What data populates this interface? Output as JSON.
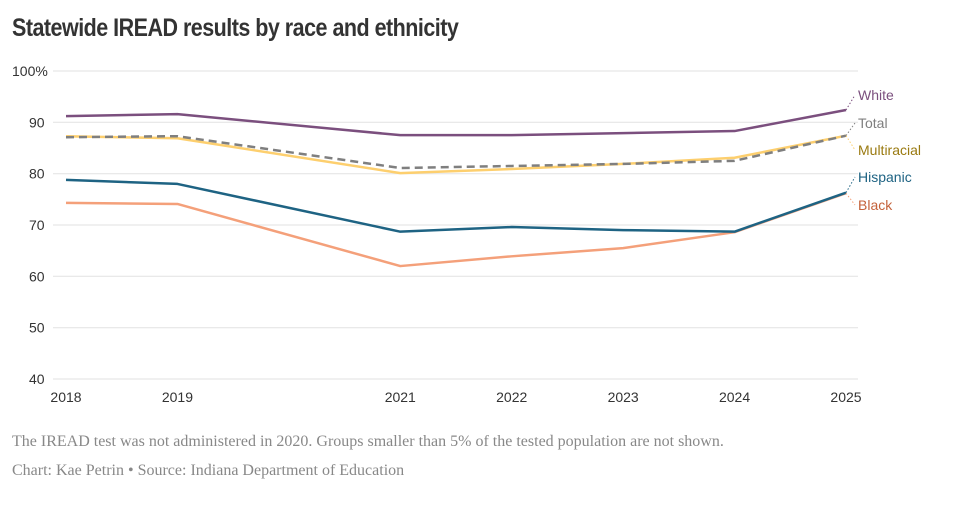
{
  "chart_data": {
    "type": "line",
    "title": "Statewide IREAD results by race and ethnicity",
    "xlabel": "",
    "ylabel": "",
    "x": [
      2018,
      2019,
      2021,
      2022,
      2023,
      2024,
      2025
    ],
    "x_tick_labels": [
      "2018",
      "2019",
      "2021",
      "2022",
      "2023",
      "2024",
      "2025"
    ],
    "xlim": [
      2018,
      2025
    ],
    "ylim": [
      40,
      100
    ],
    "y_ticks": [
      40,
      50,
      60,
      70,
      80,
      90,
      100
    ],
    "y_tick_labels": [
      "40",
      "50",
      "60",
      "70",
      "80",
      "90",
      "100%"
    ],
    "grid": true,
    "legend": "direct labels at right end of lines",
    "series": [
      {
        "name": "White",
        "color": "#7b4f7e",
        "label_color": "#7b4f7e",
        "dashed": false,
        "values": [
          91.2,
          91.6,
          87.5,
          87.5,
          87.9,
          88.3,
          92.4
        ]
      },
      {
        "name": "Total",
        "color": "#7f7f7f",
        "label_color": "#7f7f7f",
        "dashed": true,
        "values": [
          87.1,
          87.3,
          81.1,
          81.5,
          81.9,
          82.5,
          87.4
        ]
      },
      {
        "name": "Multiracial",
        "color": "#fdcf6e",
        "label_color": "#9a7a10",
        "dashed": false,
        "values": [
          87.3,
          86.9,
          80.1,
          80.9,
          81.9,
          83.1,
          87.4
        ]
      },
      {
        "name": "Hispanic",
        "color": "#1e6383",
        "label_color": "#1e6383",
        "dashed": false,
        "values": [
          78.8,
          78.0,
          68.7,
          69.6,
          69.0,
          68.7,
          76.3
        ]
      },
      {
        "name": "Black",
        "color": "#f4a07a",
        "label_color": "#c4623b",
        "dashed": false,
        "values": [
          74.3,
          74.1,
          62.0,
          63.9,
          65.5,
          68.6,
          76.2
        ]
      }
    ],
    "annotations": []
  },
  "notes": {
    "line1": "The IREAD test was not administered in 2020. Groups smaller than 5% of the tested population are not shown.",
    "line2": "Chart: Kae Petrin • Source: Indiana Department of Education"
  }
}
